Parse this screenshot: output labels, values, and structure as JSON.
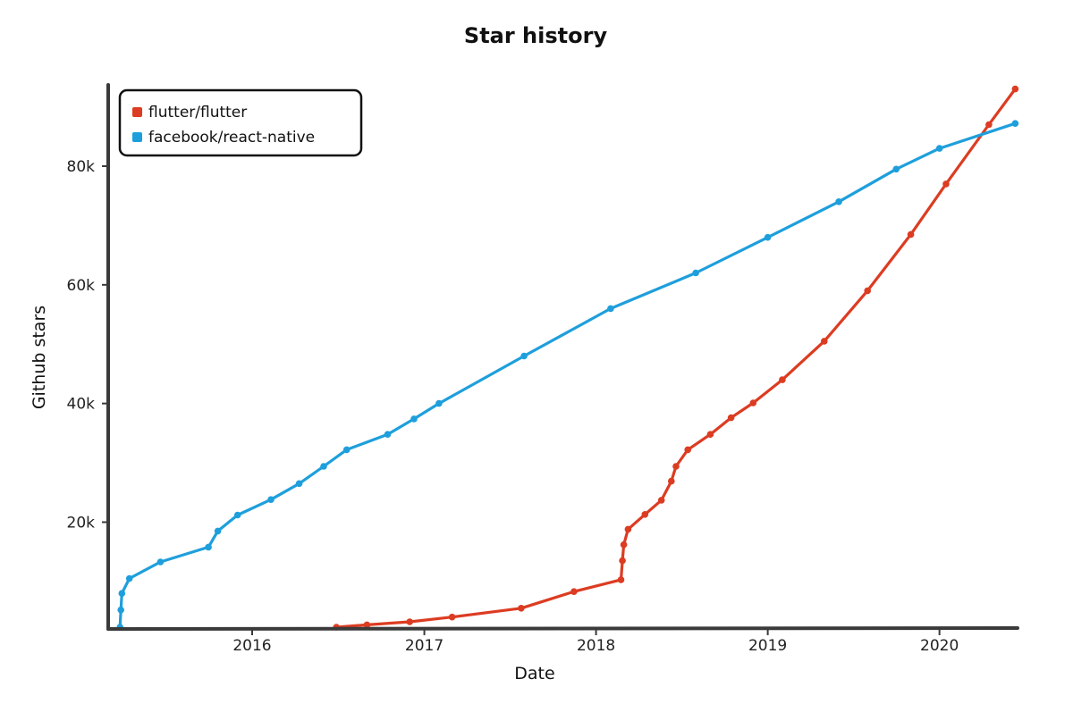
{
  "chart_data": {
    "type": "line",
    "title": "Star history",
    "xlabel": "Date",
    "ylabel": "Github stars",
    "x_ticks": [
      "2016",
      "2017",
      "2018",
      "2019",
      "2020"
    ],
    "y_ticks": [
      "20k",
      "40k",
      "60k",
      "80k"
    ],
    "y_tick_values": [
      20000,
      40000,
      60000,
      80000
    ],
    "xlim": [
      "2015-03-01",
      "2020-06-15"
    ],
    "ylim": [
      2000,
      94000
    ],
    "grid": false,
    "legend_position": "top-left",
    "series": [
      {
        "name": "flutter/flutter",
        "color": "#dc3c22",
        "points": [
          [
            "2016-06-28",
            2300
          ],
          [
            "2016-09-01",
            2700
          ],
          [
            "2016-12-01",
            3200
          ],
          [
            "2017-03-01",
            4000
          ],
          [
            "2017-07-26",
            5500
          ],
          [
            "2017-11-15",
            8300
          ],
          [
            "2018-02-23",
            10300
          ],
          [
            "2018-02-26",
            13500
          ],
          [
            "2018-03-01",
            16200
          ],
          [
            "2018-03-10",
            18800
          ],
          [
            "2018-04-15",
            21300
          ],
          [
            "2018-05-20",
            23700
          ],
          [
            "2018-06-10",
            26900
          ],
          [
            "2018-06-20",
            29400
          ],
          [
            "2018-07-15",
            32200
          ],
          [
            "2018-09-01",
            34800
          ],
          [
            "2018-10-15",
            37600
          ],
          [
            "2018-12-01",
            40100
          ],
          [
            "2019-02-01",
            44000
          ],
          [
            "2019-05-01",
            50500
          ],
          [
            "2019-08-01",
            59000
          ],
          [
            "2019-11-01",
            68500
          ],
          [
            "2020-01-15",
            77000
          ],
          [
            "2020-04-15",
            87000
          ],
          [
            "2020-06-10",
            93000
          ]
        ]
      },
      {
        "name": "facebook/react-native",
        "color": "#1e9fdc",
        "points": [
          [
            "2015-03-26",
            2300
          ],
          [
            "2015-03-28",
            5200
          ],
          [
            "2015-03-30",
            8000
          ],
          [
            "2015-04-15",
            10500
          ],
          [
            "2015-06-20",
            13300
          ],
          [
            "2015-09-30",
            15800
          ],
          [
            "2015-10-20",
            18500
          ],
          [
            "2015-12-01",
            21200
          ],
          [
            "2016-02-10",
            23800
          ],
          [
            "2016-04-10",
            26500
          ],
          [
            "2016-06-01",
            29400
          ],
          [
            "2016-07-20",
            32200
          ],
          [
            "2016-10-15",
            34800
          ],
          [
            "2016-12-10",
            37400
          ],
          [
            "2017-02-01",
            40000
          ],
          [
            "2017-08-01",
            48000
          ],
          [
            "2018-02-01",
            56000
          ],
          [
            "2018-08-01",
            62000
          ],
          [
            "2019-01-01",
            68000
          ],
          [
            "2019-06-01",
            74000
          ],
          [
            "2019-10-01",
            79500
          ],
          [
            "2020-01-01",
            83000
          ],
          [
            "2020-06-10",
            87200
          ]
        ]
      }
    ]
  }
}
